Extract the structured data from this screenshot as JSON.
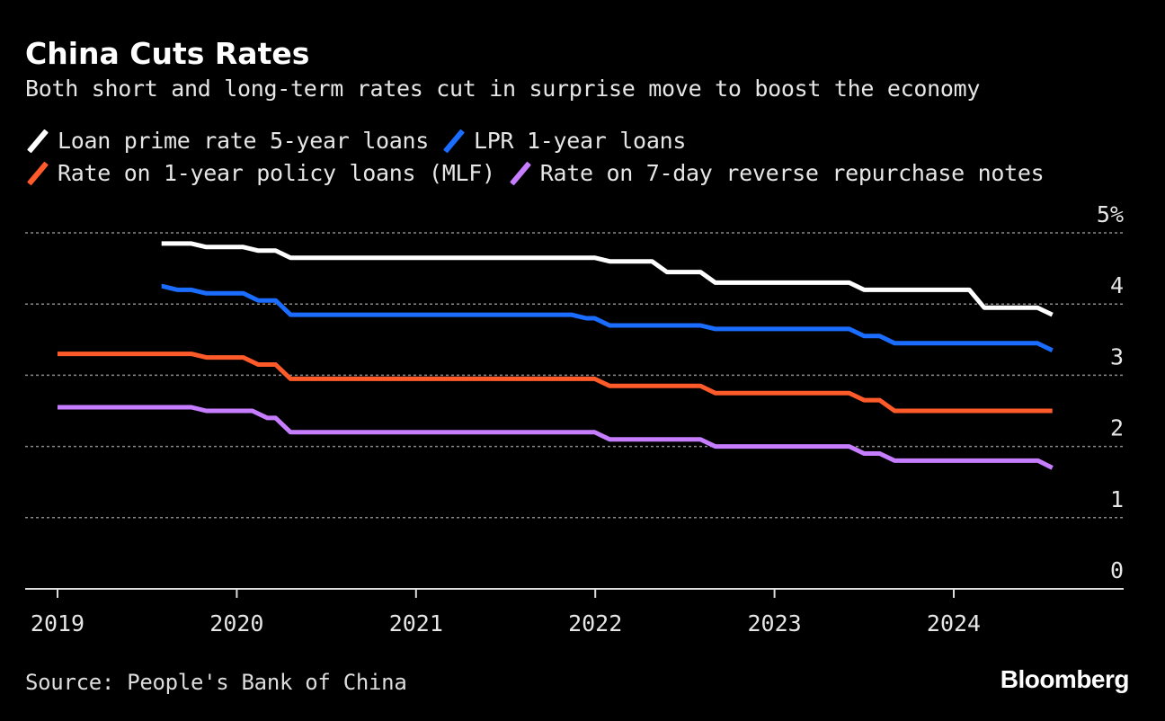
{
  "chart_data": {
    "type": "line",
    "title": "China Cuts Rates",
    "subtitle": "Both short and long-term rates cut in surprise move to boost the economy",
    "xlabel": "",
    "ylabel": "",
    "xlim": [
      2018.97,
      2024.94
    ],
    "ylim": [
      0,
      5
    ],
    "y_ticks": [
      "0",
      "1",
      "2",
      "3",
      "4",
      "5%"
    ],
    "x_ticks": [
      "2019",
      "2020",
      "2021",
      "2022",
      "2023",
      "2024"
    ],
    "grid": true,
    "legend_placement": "top-left",
    "source": "Source: People's Bank of China",
    "brand": "Bloomberg",
    "series": [
      {
        "name": "Loan prime rate 5-year loans",
        "color": "#ffffff",
        "points": [
          [
            2019.58,
            4.85
          ],
          [
            2019.83,
            4.8
          ],
          [
            2020.12,
            4.75
          ],
          [
            2020.3,
            4.65
          ],
          [
            2022.08,
            4.6
          ],
          [
            2022.4,
            4.45
          ],
          [
            2022.67,
            4.3
          ],
          [
            2023.5,
            4.2
          ],
          [
            2024.17,
            3.95
          ],
          [
            2024.55,
            3.85
          ]
        ]
      },
      {
        "name": "LPR 1-year loans",
        "color": "#1a6dff",
        "points": [
          [
            2019.58,
            4.25
          ],
          [
            2019.67,
            4.2
          ],
          [
            2019.83,
            4.15
          ],
          [
            2020.12,
            4.05
          ],
          [
            2020.3,
            3.85
          ],
          [
            2021.95,
            3.8
          ],
          [
            2022.08,
            3.7
          ],
          [
            2022.67,
            3.65
          ],
          [
            2023.5,
            3.55
          ],
          [
            2023.67,
            3.45
          ],
          [
            2024.55,
            3.35
          ]
        ]
      },
      {
        "name": "Rate on 1-year policy loans (MLF)",
        "color": "#ff5a2a",
        "points": [
          [
            2019.0,
            3.3
          ],
          [
            2019.83,
            3.25
          ],
          [
            2020.12,
            3.15
          ],
          [
            2020.3,
            2.95
          ],
          [
            2022.08,
            2.85
          ],
          [
            2022.67,
            2.75
          ],
          [
            2023.5,
            2.65
          ],
          [
            2023.67,
            2.5
          ],
          [
            2024.55,
            2.5
          ]
        ]
      },
      {
        "name": "Rate on 7-day reverse repurchase notes",
        "color": "#c77dff",
        "points": [
          [
            2019.0,
            2.55
          ],
          [
            2019.83,
            2.5
          ],
          [
            2020.17,
            2.4
          ],
          [
            2020.3,
            2.2
          ],
          [
            2022.08,
            2.1
          ],
          [
            2022.67,
            2.0
          ],
          [
            2023.5,
            1.9
          ],
          [
            2023.67,
            1.8
          ],
          [
            2024.47,
            1.8
          ],
          [
            2024.55,
            1.7
          ]
        ]
      }
    ]
  }
}
